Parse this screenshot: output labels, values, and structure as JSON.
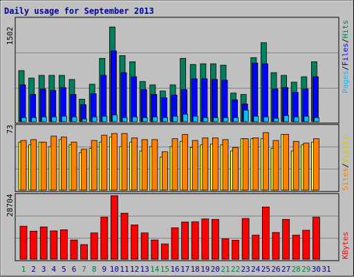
{
  "title": "Daily usage for September 2013",
  "colors": {
    "bg": "#c0c0c0",
    "plot": "#c0c0c0",
    "title": "#0000a0",
    "hits": "#00805c",
    "files": "#0000ff",
    "pages": "#00c0ff",
    "visits": "#ffff00",
    "sites": "#ff8000",
    "kbytes": "#ff0000",
    "day_normal": "#000080",
    "day_weekend": "#008040"
  },
  "panels": {
    "top": {
      "ymax_label": "1502",
      "legend": {
        "pages": "Pages",
        "files": "Files",
        "hits": "Hits",
        "sep": "/"
      }
    },
    "middle": {
      "ymax_label": "73",
      "legend": {
        "sites": "Sites",
        "visits": "Visits",
        "sep": "/"
      }
    },
    "bottom": {
      "ymax_label": "28704",
      "legend": {
        "kbytes": "KBytes"
      }
    }
  },
  "chart_data": {
    "type": "bar",
    "title": "Daily usage for September 2013",
    "x": [
      1,
      2,
      3,
      4,
      5,
      6,
      7,
      8,
      9,
      10,
      11,
      12,
      13,
      14,
      15,
      16,
      17,
      18,
      19,
      20,
      21,
      22,
      23,
      24,
      25,
      26,
      27,
      28,
      29,
      30,
      31
    ],
    "weekend_days": [
      1,
      7,
      8,
      14,
      15,
      21,
      22,
      28,
      29
    ],
    "panels": [
      {
        "name": "top",
        "ymax": 1502,
        "series": [
          {
            "name": "Hits",
            "values": [
              750,
              640,
              680,
              680,
              680,
              620,
              330,
              550,
              930,
              1390,
              970,
              880,
              590,
              540,
              450,
              540,
              930,
              840,
              850,
              850,
              830,
              420,
              400,
              940,
              1160,
              720,
              680,
              580,
              660,
              880,
              0
            ]
          },
          {
            "name": "Files",
            "values": [
              540,
              400,
              480,
              460,
              500,
              400,
              250,
              410,
              680,
              1040,
              720,
              660,
              470,
              400,
              350,
              390,
              470,
              630,
              630,
              620,
              610,
              320,
              260,
              860,
              850,
              480,
              500,
              430,
              480,
              660,
              0
            ]
          },
          {
            "name": "Pages",
            "values": [
              60,
              60,
              70,
              70,
              80,
              70,
              40,
              70,
              80,
              100,
              60,
              70,
              60,
              70,
              60,
              80,
              110,
              80,
              60,
              60,
              60,
              60,
              170,
              80,
              70,
              50,
              90,
              70,
              80,
              60,
              0
            ]
          }
        ]
      },
      {
        "name": "middle",
        "ymax": 73,
        "series": [
          {
            "name": "Visits",
            "values": [
              55,
              52,
              55,
              50,
              58,
              52,
              43,
              48,
              55,
              61,
              50,
              55,
              45,
              50,
              38,
              50,
              56,
              49,
              52,
              53,
              52,
              45,
              59,
              59,
              59,
              48,
              64,
              45,
              52,
              55,
              0
            ]
          },
          {
            "name": "Sites",
            "values": [
              57,
              58,
              55,
              62,
              61,
              55,
              47,
              57,
              63,
              65,
              65,
              60,
              58,
              58,
              44,
              59,
              64,
              57,
              60,
              60,
              58,
              49,
              59,
              60,
              66,
              57,
              64,
              56,
              54,
              59,
              0
            ]
          }
        ]
      },
      {
        "name": "bottom",
        "ymax": 28704,
        "series": [
          {
            "name": "KBytes",
            "values": [
              14900,
              12700,
              14600,
              12800,
              13300,
              8700,
              6600,
              11900,
              19000,
              28700,
              20800,
              15500,
              11900,
              8700,
              6900,
              14200,
              16800,
              16900,
              18200,
              18000,
              9200,
              8600,
              18400,
              10900,
              23600,
              12100,
              18000,
              10900,
              13100,
              19000,
              0
            ]
          }
        ]
      }
    ]
  }
}
